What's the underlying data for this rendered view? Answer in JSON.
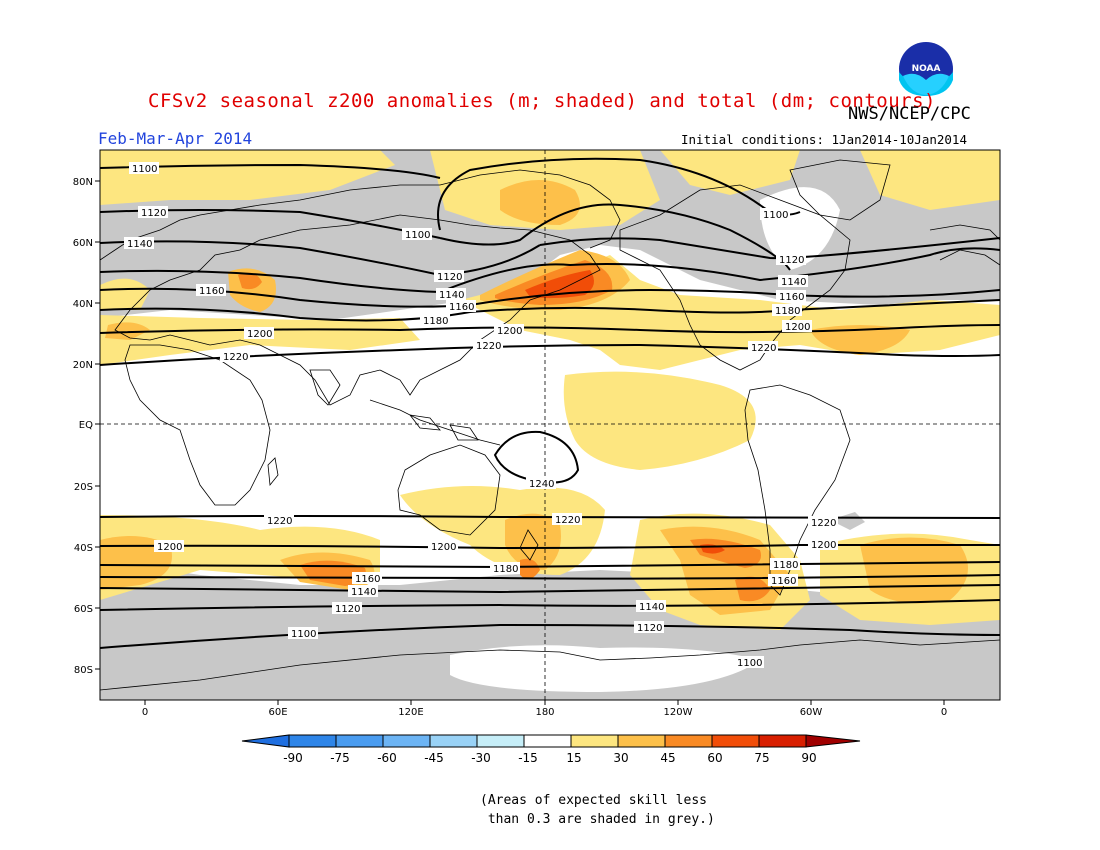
{
  "header": {
    "title": "CFSv2 seasonal z200 anomalies (m; shaded) and total (dm; contours)",
    "period": "Feb-Mar-Apr 2014",
    "organization": "NWS/NCEP/CPC",
    "initial_conditions": "Initial conditions: 1Jan2014-10Jan2014",
    "logo_text": "NOAA"
  },
  "map": {
    "lat_labels": [
      "80N",
      "60N",
      "40N",
      "20N",
      "EQ",
      "20S",
      "40S",
      "60S",
      "80S"
    ],
    "lon_labels": [
      "0",
      "60E",
      "120E",
      "180",
      "120W",
      "60W",
      "0"
    ],
    "contour_labels": [
      "1100",
      "1120",
      "1140",
      "1160",
      "1180",
      "1200",
      "1220",
      "1240"
    ]
  },
  "legend": {
    "ticks": [
      "-90",
      "-75",
      "-60",
      "-45",
      "-30",
      "-15",
      "15",
      "30",
      "45",
      "60",
      "75",
      "90"
    ],
    "colors": [
      "#1f6fe0",
      "#2e85e8",
      "#4a9cf0",
      "#6cb4f4",
      "#99d2f6",
      "#c6eef8",
      "#ffffff",
      "#fde680",
      "#fdc04a",
      "#f98a24",
      "#f14d08",
      "#d81f00",
      "#a00000"
    ]
  },
  "note": "(Areas of expected skill less\n than 0.3 are shaded in grey.)"
}
